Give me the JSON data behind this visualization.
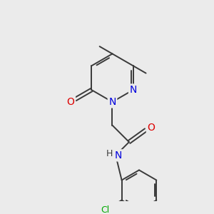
{
  "background_color": "#ebebeb",
  "bond_color": "#3a3a3a",
  "atom_colors": {
    "N": "#0000dd",
    "O": "#dd0000",
    "Cl": "#00aa00",
    "C": "#3a3a3a",
    "H": "#3a3a3a"
  },
  "figsize": [
    3.0,
    3.0
  ],
  "dpi": 100
}
